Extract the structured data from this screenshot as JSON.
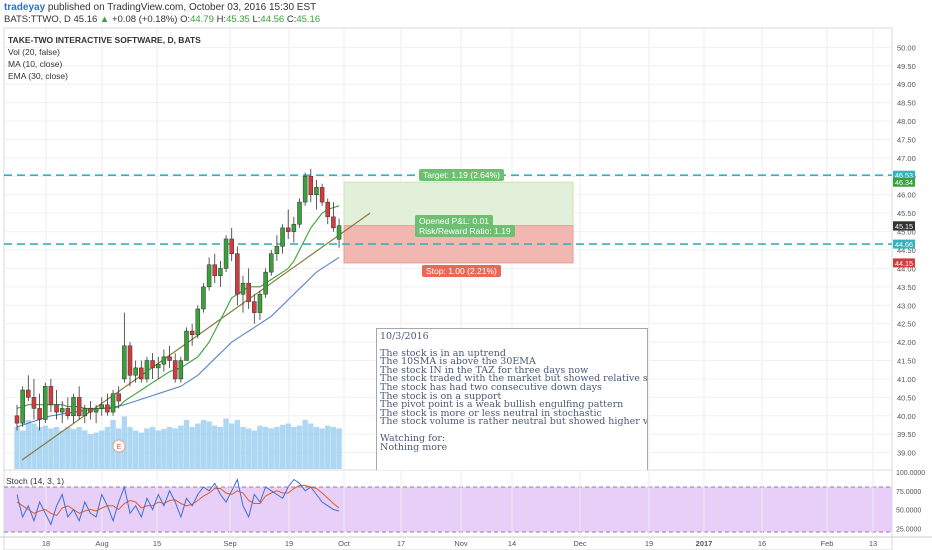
{
  "header": {
    "publisher": "tradeyay",
    "published_text": "published on TradingView.com, October 03, 2016 15:30 EST",
    "symbol": "BATS:TTWO, D",
    "last": "45.16",
    "change": "+0.08 (+0.18%)",
    "open_label": "O:",
    "open": "44.79",
    "high_label": "H:",
    "high": "45.35",
    "low_label": "L:",
    "low": "44.56",
    "close_label": "C:",
    "close": "45.16"
  },
  "legend": {
    "title": "TAKE-TWO INTERACTIVE SOFTWARE, D, BATS",
    "vol": "Vol (20, false)",
    "ma": "MA (10, close)",
    "ema": "EMA (30, close)"
  },
  "position": {
    "target_label": "Target: 1.19 (2.64%)",
    "pnl_label": "Opened P&L: 0.01",
    "rr_label": "Risk/Reward Ratio: 1.19",
    "stop_label": "Stop: 1.00 (2.21%)",
    "target_price": 46.34,
    "entry_price": 45.16,
    "stop_price": 44.15
  },
  "note": {
    "date": "10/3/2016",
    "lines": [
      "The stock is in an uptrend",
      "The 10SMA is above the 30EMA",
      "The stock IN in the TAZ for three days now",
      "The stock traded with the market but showed relative strength today",
      "The stock has had two consecutive down days",
      "The stock is on a support",
      "The pivot point is a weak bullish engulfing pattern",
      "The stock is more or less neutral in stochastic",
      "The stock volume is rather neutral but showed higher volume on previous day"
    ],
    "watching": "Watching for:",
    "watching_item": "Nothing more"
  },
  "stoch": {
    "label": "Stoch (14, 3, 1)"
  },
  "colors": {
    "up": "#3aa13a",
    "down": "#d23c3c",
    "sma": "#3aa13a",
    "ema": "#5b86c7",
    "trendline": "#8a7a3a",
    "support": "#35b2bd",
    "target_fill": "#e3f0d9",
    "stop_fill": "#f2b7b0",
    "volume": "#9fd0f0",
    "stoch_bg": "#e8cff8",
    "stoch_k": "#3e6fd1",
    "stoch_d": "#e35b2c"
  },
  "chart_data": {
    "type": "candlestick",
    "ylim": [
      38.8,
      50.2
    ],
    "y_ticks": [
      "39.00",
      "39.50",
      "40.00",
      "40.50",
      "41.00",
      "41.50",
      "42.00",
      "42.50",
      "43.00",
      "43.50",
      "44.00",
      "44.50",
      "45.00",
      "45.50",
      "46.00",
      "46.50",
      "47.00",
      "47.50",
      "48.00",
      "48.50",
      "49.00",
      "49.50",
      "50.00"
    ],
    "x_ticks": [
      "18",
      "Aug",
      "15",
      "Sep",
      "19",
      "Oct",
      "17",
      "Nov",
      "14",
      "Dec",
      "19",
      "2017",
      "16",
      "Feb",
      "13"
    ],
    "price_labels": [
      {
        "text": "46.53",
        "color": "#35b2bd"
      },
      {
        "text": "46.34",
        "color": "#3aa13a"
      },
      {
        "text": "45.16",
        "color": "#3aa13a"
      },
      {
        "text": "45.15",
        "color": "#333333"
      },
      {
        "text": "44.66",
        "color": "#35b2bd"
      },
      {
        "text": "44.15",
        "color": "#d23c3c"
      }
    ],
    "support_levels": [
      46.53,
      44.66
    ],
    "candles": [
      [
        40.0,
        40.3,
        39.6,
        39.8
      ],
      [
        39.8,
        40.8,
        39.7,
        40.7
      ],
      [
        40.7,
        41.1,
        40.4,
        40.5
      ],
      [
        40.5,
        41.0,
        39.9,
        40.2
      ],
      [
        40.2,
        40.6,
        39.6,
        39.9
      ],
      [
        39.9,
        40.9,
        39.8,
        40.8
      ],
      [
        40.8,
        41.0,
        40.1,
        40.3
      ],
      [
        40.3,
        40.7,
        39.9,
        40.1
      ],
      [
        40.1,
        40.4,
        39.8,
        40.2
      ],
      [
        40.2,
        40.5,
        39.9,
        40.0
      ],
      [
        40.0,
        40.6,
        39.8,
        40.5
      ],
      [
        40.5,
        40.8,
        39.9,
        40.0
      ],
      [
        40.0,
        40.3,
        39.8,
        40.2
      ],
      [
        40.2,
        40.4,
        39.9,
        40.1
      ],
      [
        40.1,
        40.3,
        39.8,
        40.2
      ],
      [
        40.2,
        40.5,
        40.0,
        40.3
      ],
      [
        40.3,
        40.6,
        40.0,
        40.1
      ],
      [
        40.1,
        40.7,
        40.0,
        40.6
      ],
      [
        40.6,
        40.8,
        40.2,
        40.4
      ],
      [
        41.0,
        42.8,
        40.9,
        41.9
      ],
      [
        41.9,
        42.0,
        40.8,
        41.1
      ],
      [
        41.1,
        41.5,
        40.9,
        41.3
      ],
      [
        41.3,
        41.5,
        40.9,
        41.0
      ],
      [
        41.0,
        41.6,
        40.9,
        41.5
      ],
      [
        41.5,
        41.7,
        41.0,
        41.3
      ],
      [
        41.3,
        41.6,
        41.0,
        41.4
      ],
      [
        41.4,
        41.8,
        41.2,
        41.6
      ],
      [
        41.6,
        41.9,
        41.3,
        41.5
      ],
      [
        41.5,
        41.7,
        40.9,
        41.0
      ],
      [
        41.0,
        41.6,
        40.9,
        41.5
      ],
      [
        41.5,
        42.4,
        41.5,
        42.3
      ],
      [
        42.3,
        42.5,
        41.9,
        42.2
      ],
      [
        42.2,
        43.0,
        42.1,
        42.9
      ],
      [
        42.9,
        43.6,
        42.8,
        43.5
      ],
      [
        43.5,
        44.3,
        43.4,
        44.1
      ],
      [
        44.1,
        44.4,
        43.6,
        43.8
      ],
      [
        43.8,
        44.2,
        43.5,
        44.0
      ],
      [
        44.0,
        44.9,
        43.9,
        44.8
      ],
      [
        44.8,
        45.1,
        44.2,
        44.4
      ],
      [
        44.4,
        44.6,
        43.0,
        43.3
      ],
      [
        43.3,
        43.8,
        42.8,
        43.6
      ],
      [
        43.6,
        44.0,
        42.9,
        43.1
      ],
      [
        43.1,
        43.3,
        42.5,
        42.8
      ],
      [
        42.8,
        43.4,
        42.6,
        43.3
      ],
      [
        43.3,
        44.0,
        43.2,
        43.9
      ],
      [
        43.9,
        44.5,
        43.8,
        44.4
      ],
      [
        44.4,
        44.9,
        44.2,
        44.6
      ],
      [
        44.6,
        45.2,
        44.4,
        45.1
      ],
      [
        45.1,
        45.6,
        44.8,
        45.0
      ],
      [
        45.0,
        45.4,
        44.7,
        45.2
      ],
      [
        45.2,
        45.9,
        45.1,
        45.8
      ],
      [
        45.8,
        46.6,
        45.7,
        46.5
      ],
      [
        46.5,
        46.7,
        45.8,
        46.0
      ],
      [
        46.0,
        46.4,
        45.6,
        46.2
      ],
      [
        46.2,
        46.3,
        45.7,
        45.8
      ],
      [
        45.8,
        45.9,
        45.2,
        45.4
      ],
      [
        45.4,
        45.8,
        45.0,
        45.1
      ],
      [
        44.79,
        45.35,
        44.56,
        45.16
      ]
    ],
    "sma10": [
      40.2,
      40.25,
      40.3,
      40.3,
      40.3,
      40.3,
      40.3,
      40.3,
      40.3,
      40.25,
      40.25,
      40.25,
      40.2,
      40.2,
      40.2,
      40.2,
      40.2,
      40.2,
      40.25,
      40.4,
      40.5,
      40.6,
      40.7,
      40.8,
      40.9,
      41.0,
      41.1,
      41.2,
      41.25,
      41.3,
      41.4,
      41.5,
      41.6,
      41.8,
      42.0,
      42.3,
      42.6,
      42.9,
      43.2,
      43.3,
      43.4,
      43.5,
      43.5,
      43.5,
      43.6,
      43.7,
      43.8,
      43.9,
      44.0,
      44.2,
      44.5,
      44.8,
      45.1,
      45.3,
      45.5,
      45.6,
      45.65,
      45.7
    ],
    "ema30": [
      39.7,
      39.75,
      39.8,
      39.85,
      39.9,
      39.95,
      40.0,
      40.02,
      40.05,
      40.07,
      40.1,
      40.12,
      40.15,
      40.17,
      40.18,
      40.2,
      40.22,
      40.24,
      40.26,
      40.3,
      40.35,
      40.4,
      40.45,
      40.5,
      40.55,
      40.6,
      40.65,
      40.7,
      40.75,
      40.8,
      40.9,
      41.0,
      41.1,
      41.25,
      41.4,
      41.55,
      41.7,
      41.85,
      42.0,
      42.1,
      42.2,
      42.3,
      42.4,
      42.5,
      42.6,
      42.7,
      42.85,
      43.0,
      43.15,
      43.3,
      43.45,
      43.6,
      43.75,
      43.9,
      44.0,
      44.1,
      44.2,
      44.3
    ],
    "volume": [
      0.6,
      0.55,
      0.7,
      0.65,
      0.6,
      0.62,
      0.58,
      0.6,
      0.55,
      0.6,
      0.57,
      0.6,
      0.55,
      0.5,
      0.52,
      0.55,
      0.6,
      0.7,
      0.58,
      0.75,
      0.6,
      0.55,
      0.52,
      0.58,
      0.6,
      0.55,
      0.57,
      0.6,
      0.58,
      0.62,
      0.7,
      0.6,
      0.65,
      0.7,
      0.68,
      0.62,
      0.6,
      0.72,
      0.65,
      0.7,
      0.6,
      0.58,
      0.55,
      0.62,
      0.6,
      0.58,
      0.6,
      0.63,
      0.65,
      0.6,
      0.62,
      0.7,
      0.65,
      0.6,
      0.58,
      0.62,
      0.6,
      0.58
    ],
    "stoch_k": [
      70,
      40,
      55,
      35,
      60,
      45,
      30,
      55,
      70,
      40,
      50,
      35,
      60,
      45,
      40,
      70,
      55,
      35,
      60,
      80,
      45,
      55,
      40,
      65,
      50,
      70,
      55,
      75,
      60,
      40,
      65,
      55,
      70,
      80,
      75,
      85,
      70,
      60,
      75,
      90,
      55,
      40,
      70,
      60,
      80,
      75,
      70,
      65,
      80,
      90,
      85,
      75,
      80,
      70,
      60,
      55,
      50,
      48
    ],
    "stoch_d": [
      60,
      55,
      50,
      45,
      48,
      50,
      45,
      42,
      52,
      55,
      50,
      45,
      48,
      50,
      48,
      52,
      55,
      55,
      50,
      58,
      62,
      60,
      52,
      55,
      55,
      60,
      58,
      62,
      63,
      58,
      55,
      57,
      62,
      68,
      72,
      78,
      78,
      72,
      70,
      75,
      72,
      62,
      58,
      58,
      68,
      72,
      75,
      72,
      72,
      78,
      82,
      82,
      80,
      78,
      72,
      65,
      58,
      52
    ],
    "stoch_ylim": [
      20,
      100
    ],
    "stoch_ticks": [
      "25.0000",
      "50.0000",
      "75.0000",
      "100.0000"
    ]
  }
}
